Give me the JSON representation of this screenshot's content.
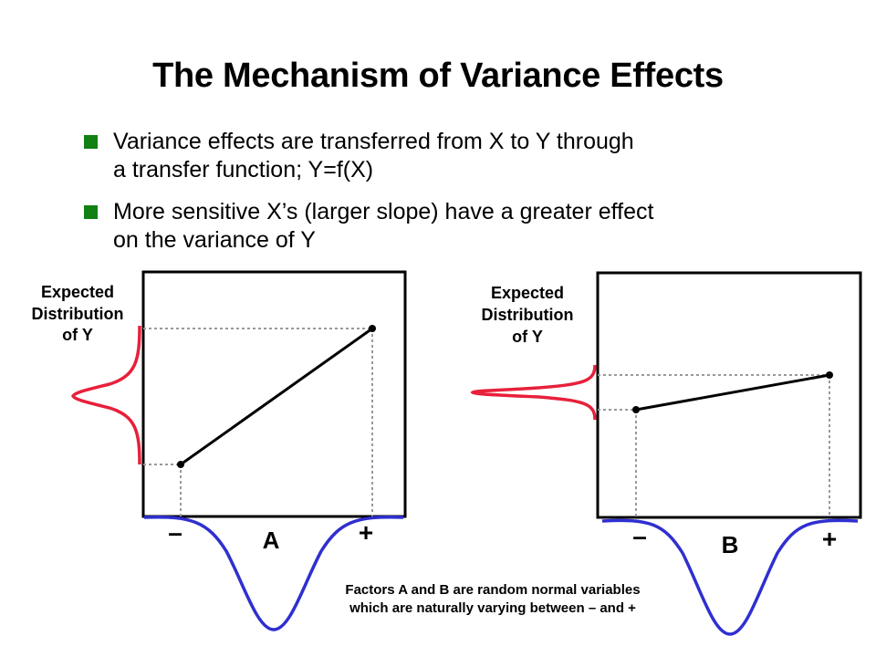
{
  "title": "The Mechanism of Variance Effects",
  "bullets": [
    {
      "line1": "Variance effects are transferred from X to Y through",
      "line2": "a transfer function; Y=f(X)"
    },
    {
      "line1": "More sensitive X’s (larger slope) have a greater effect",
      "line2": "on the variance of Y"
    }
  ],
  "panels": [
    {
      "y_label": [
        "Expected",
        "Distribution",
        "of Y"
      ],
      "minus": "–",
      "plus": "+",
      "factor": "A"
    },
    {
      "y_label": [
        "Expected",
        "Distribution",
        "of Y"
      ],
      "minus": "–",
      "plus": "+",
      "factor": "B"
    }
  ],
  "caption": {
    "line1": "Factors A and B are random normal variables",
    "line2": "which are naturally varying between – and +"
  },
  "colors": {
    "bullet": "#128012",
    "y_distribution": "#e8203a",
    "x_distribution": "#2f2fd0",
    "guide": "#999999"
  }
}
